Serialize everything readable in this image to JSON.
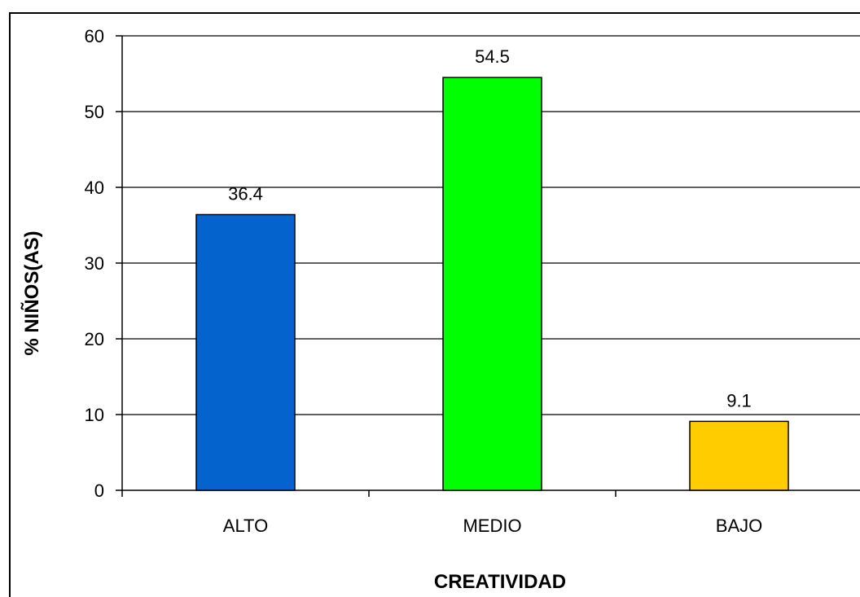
{
  "chart_data": {
    "type": "bar",
    "categories": [
      "ALTO",
      "MEDIO",
      "BAJO"
    ],
    "values": [
      36.4,
      54.5,
      9.1
    ],
    "data_labels": [
      "36.4",
      "54.5",
      "9.1"
    ],
    "colors": [
      "#0563CE",
      "#00FF00",
      "#FFCC00"
    ],
    "xlabel": "CREATIVIDAD",
    "ylabel": "% NIÑOS(AS)",
    "ylim": [
      0,
      60
    ],
    "yticks": [
      0,
      10,
      20,
      30,
      40,
      50,
      60
    ],
    "grid": true,
    "legend": "none"
  }
}
